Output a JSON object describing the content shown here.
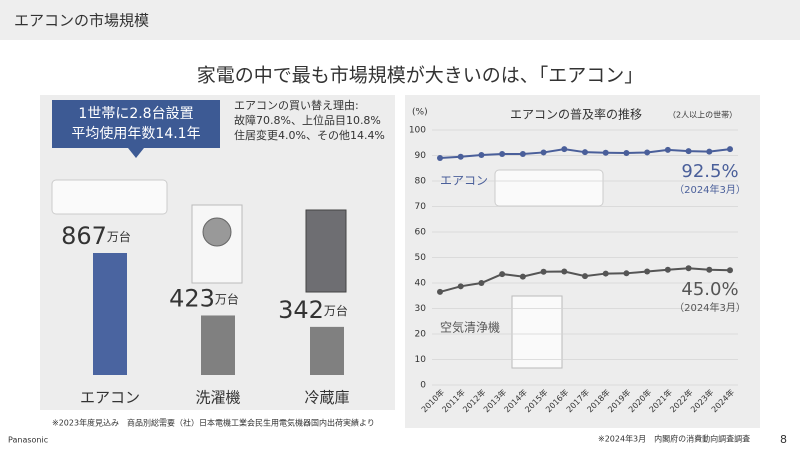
{
  "header": {
    "title": "エアコンの市場規模"
  },
  "headline": "家電の中で最も市場規模が大きいのは、「エアコン」",
  "callout": [
    "1世帯に2.8台設置",
    "平均使用年数14.1年"
  ],
  "note": [
    "エアコンの買い替え理由:",
    "故障70.8%、上位品目10.8%",
    "住居変更4.0%、その他14.4%"
  ],
  "footnote": "※2023年度見込み　商品別総需要（社）日本電機工業会民生用電気機器国内出荷実績より",
  "source": "※2024年3月　内閣府の消費動向調査調査",
  "footer": {
    "brand": "Panasonic",
    "page": "8"
  },
  "chart_data": [
    {
      "type": "bar",
      "categories": [
        "エアコン",
        "洗濯機",
        "冷蔵庫"
      ],
      "values": [
        867,
        423,
        342
      ],
      "value_labels": [
        "867万台",
        "423万台",
        "342万台"
      ],
      "colors": [
        "#4a64a0",
        "#808080",
        "#808080"
      ]
    },
    {
      "type": "line",
      "title": "エアコンの普及率の推移",
      "subtitle": "（2人以上の世帯）",
      "y_label": "(%)",
      "categories": [
        "2010年",
        "2011年",
        "2012年",
        "2013年",
        "2014年",
        "2015年",
        "2016年",
        "2017年",
        "2018年",
        "2019年",
        "2020年",
        "2021年",
        "2022年",
        "2023年",
        "2024年"
      ],
      "series": [
        {
          "name": "エアコン",
          "color": "#4a5f9a",
          "values": [
            89,
            89.5,
            90.2,
            90.6,
            90.6,
            91.2,
            92.5,
            91.3,
            91.1,
            91,
            91.2,
            92.2,
            91.7,
            91.5,
            92.5
          ]
        },
        {
          "name": "空気清浄機",
          "color": "#555555",
          "values": [
            36.5,
            38.7,
            40,
            43.5,
            42.5,
            44.4,
            44.5,
            42.7,
            43.7,
            43.8,
            44.5,
            45.2,
            45.8,
            45.2,
            45
          ]
        }
      ],
      "annotations": [
        {
          "text": "92.5%",
          "date": "（2024年3月）"
        },
        {
          "text": "45.0%",
          "date": "（2024年3月）"
        }
      ],
      "ylim": [
        0,
        100
      ],
      "yticks": [
        0,
        10,
        20,
        30,
        40,
        50,
        60,
        70,
        80,
        90,
        100
      ],
      "grid": true
    }
  ]
}
